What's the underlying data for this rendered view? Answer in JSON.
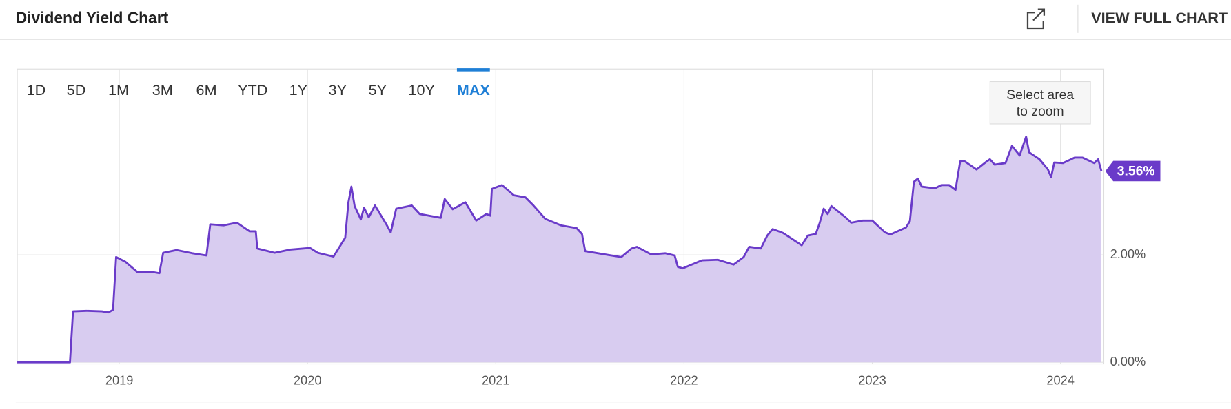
{
  "header": {
    "title": "Dividend Yield Chart",
    "link": "VIEW FULL CHART"
  },
  "ranges": [
    "1D",
    "5D",
    "1M",
    "3M",
    "6M",
    "YTD",
    "1Y",
    "3Y",
    "5Y",
    "10Y",
    "MAX"
  ],
  "active_range": 10,
  "zoom_hint": [
    "Select area",
    "to zoom"
  ],
  "chart_data": {
    "type": "area",
    "x": [
      2018.458,
      2018.738,
      2018.754,
      2018.825,
      2018.908,
      2018.942,
      2018.967,
      2018.983,
      2019.033,
      2019.096,
      2019.179,
      2019.213,
      2019.233,
      2019.304,
      2019.388,
      2019.463,
      2019.483,
      2019.554,
      2019.625,
      2019.692,
      2019.725,
      2019.733,
      2019.825,
      2019.908,
      2020.013,
      2020.054,
      2020.138,
      2020.2,
      2020.217,
      2020.233,
      2020.25,
      2020.283,
      2020.3,
      2020.325,
      2020.358,
      2020.417,
      2020.442,
      2020.471,
      2020.554,
      2020.596,
      2020.708,
      2020.729,
      2020.771,
      2020.838,
      2020.896,
      2020.95,
      2020.971,
      2020.979,
      2021.033,
      2021.096,
      2021.158,
      2021.2,
      2021.263,
      2021.346,
      2021.429,
      2021.458,
      2021.475,
      2021.596,
      2021.667,
      2021.721,
      2021.75,
      2021.825,
      2021.9,
      2021.95,
      2021.967,
      2021.992,
      2022.096,
      2022.179,
      2022.263,
      2022.317,
      2022.346,
      2022.408,
      2022.442,
      2022.471,
      2022.525,
      2022.625,
      2022.658,
      2022.7,
      2022.721,
      2022.742,
      2022.763,
      2022.783,
      2022.858,
      2022.888,
      2022.95,
      2023.0,
      2023.067,
      2023.096,
      2023.179,
      2023.2,
      2023.221,
      2023.242,
      2023.263,
      2023.333,
      2023.367,
      2023.408,
      2023.442,
      2023.467,
      2023.492,
      2023.554,
      2023.608,
      2023.625,
      2023.65,
      2023.708,
      2023.742,
      2023.783,
      2023.817,
      2023.833,
      2023.888,
      2023.933,
      2023.95,
      2023.967,
      2024.013,
      2024.075,
      2024.117,
      2024.179,
      2024.2,
      2024.217
    ],
    "series": [
      {
        "color": "#6a3bc9",
        "fill": "#d8ccf0",
        "values": [
          0,
          0,
          0.95,
          0.96,
          0.95,
          0.93,
          0.98,
          1.96,
          1.87,
          1.68,
          1.68,
          1.66,
          2.04,
          2.09,
          2.03,
          1.99,
          2.57,
          2.55,
          2.6,
          2.44,
          2.44,
          2.12,
          2.04,
          2.1,
          2.13,
          2.04,
          1.97,
          2.32,
          2.98,
          3.27,
          2.91,
          2.66,
          2.88,
          2.7,
          2.92,
          2.58,
          2.42,
          2.86,
          2.92,
          2.76,
          2.69,
          3.04,
          2.85,
          2.98,
          2.64,
          2.76,
          2.73,
          3.23,
          3.3,
          3.11,
          3.07,
          2.92,
          2.67,
          2.55,
          2.5,
          2.39,
          2.07,
          2.0,
          1.96,
          2.12,
          2.15,
          2.01,
          2.03,
          1.99,
          1.78,
          1.75,
          1.9,
          1.91,
          1.82,
          1.96,
          2.15,
          2.12,
          2.36,
          2.48,
          2.41,
          2.18,
          2.36,
          2.39,
          2.6,
          2.86,
          2.76,
          2.91,
          2.7,
          2.6,
          2.64,
          2.64,
          2.42,
          2.38,
          2.51,
          2.63,
          3.36,
          3.42,
          3.27,
          3.24,
          3.3,
          3.3,
          3.21,
          3.74,
          3.74,
          3.59,
          3.74,
          3.78,
          3.68,
          3.71,
          4.03,
          3.85,
          4.2,
          3.91,
          3.78,
          3.59,
          3.45,
          3.72,
          3.71,
          3.81,
          3.81,
          3.71,
          3.78,
          3.56
        ]
      }
    ],
    "current_label": "3.56%",
    "xlim": [
      2018.458,
      2024.23
    ],
    "xticks": [
      2019,
      2020,
      2021,
      2022,
      2023,
      2024
    ],
    "ylim": [
      0,
      5.46
    ],
    "yticks": [
      {
        "value": 0,
        "label": "0.00%"
      },
      {
        "value": 2,
        "label": "2.00%"
      }
    ],
    "grid": true
  }
}
